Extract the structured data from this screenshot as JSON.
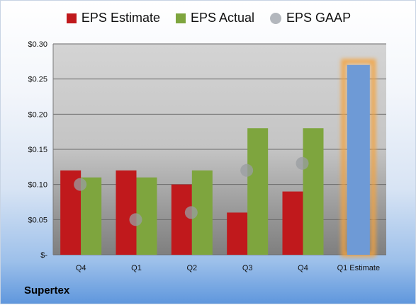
{
  "company": "Supertex",
  "colors": {
    "estimate": "#c0191c",
    "actual": "#7ea53e",
    "gaap": "#a6a6a6",
    "forecast": "#6e9ad6",
    "forecast_glow": "#f4a23c"
  },
  "chart_data": {
    "type": "bar",
    "title": "",
    "xlabel": "",
    "ylabel": "",
    "ylim": [
      0,
      0.3
    ],
    "yticks": [
      0,
      0.05,
      0.1,
      0.15,
      0.2,
      0.25,
      0.3
    ],
    "ytick_labels": [
      "$-",
      "$0.05",
      "$0.10",
      "$0.15",
      "$0.20",
      "$0.25",
      "$0.30"
    ],
    "grid": true,
    "legend_position": "top",
    "categories": [
      "Q4",
      "Q1",
      "Q2",
      "Q3",
      "Q4",
      "Q1 Estimate"
    ],
    "series": [
      {
        "name": "EPS Estimate",
        "kind": "bar",
        "color": "#c0191c",
        "values": [
          0.12,
          0.12,
          0.1,
          0.06,
          0.09,
          null
        ]
      },
      {
        "name": "EPS Actual",
        "kind": "bar",
        "color": "#7ea53e",
        "values": [
          0.11,
          0.11,
          0.12,
          0.18,
          0.18,
          null
        ]
      },
      {
        "name": "EPS GAAP",
        "kind": "marker",
        "color": "#a6a6a6",
        "values": [
          0.1,
          0.05,
          0.06,
          0.12,
          0.13,
          null
        ]
      }
    ],
    "forecast": {
      "category": "Q1 Estimate",
      "value": 0.27,
      "color": "#6e9ad6"
    }
  }
}
